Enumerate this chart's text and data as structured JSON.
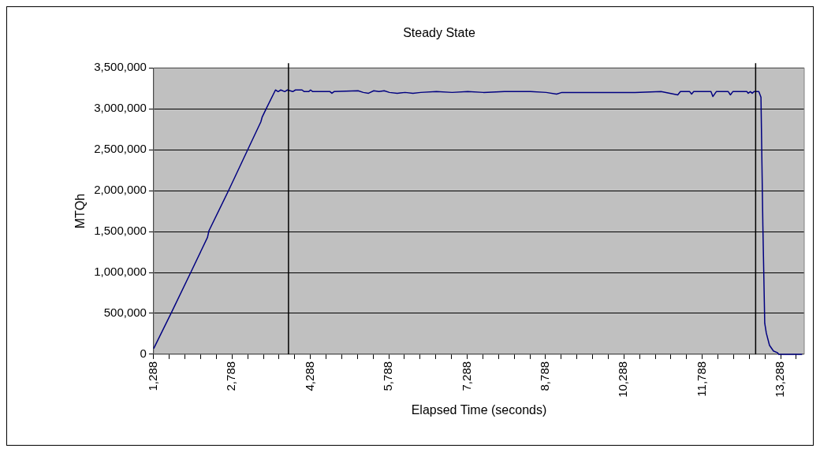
{
  "chart_data": {
    "type": "line",
    "title": "Steady State",
    "xlabel": "Elapsed Time (seconds)",
    "ylabel": "MTQh",
    "xlim": [
      1288,
      13740
    ],
    "xticks": [
      {
        "value": 1288,
        "label": "1,288"
      },
      {
        "value": 1588,
        "label": null
      },
      {
        "value": 1888,
        "label": null
      },
      {
        "value": 2188,
        "label": null
      },
      {
        "value": 2488,
        "label": null
      },
      {
        "value": 2788,
        "label": "2,788"
      },
      {
        "value": 3088,
        "label": null
      },
      {
        "value": 3388,
        "label": null
      },
      {
        "value": 3688,
        "label": null
      },
      {
        "value": 3988,
        "label": null
      },
      {
        "value": 4288,
        "label": "4,288"
      },
      {
        "value": 4588,
        "label": null
      },
      {
        "value": 4888,
        "label": null
      },
      {
        "value": 5188,
        "label": null
      },
      {
        "value": 5488,
        "label": null
      },
      {
        "value": 5788,
        "label": "5,788"
      },
      {
        "value": 6088,
        "label": null
      },
      {
        "value": 6388,
        "label": null
      },
      {
        "value": 6688,
        "label": null
      },
      {
        "value": 6988,
        "label": null
      },
      {
        "value": 7288,
        "label": "7,288"
      },
      {
        "value": 7588,
        "label": null
      },
      {
        "value": 7888,
        "label": null
      },
      {
        "value": 8188,
        "label": null
      },
      {
        "value": 8488,
        "label": null
      },
      {
        "value": 8788,
        "label": "8,788"
      },
      {
        "value": 9088,
        "label": null
      },
      {
        "value": 9388,
        "label": null
      },
      {
        "value": 9688,
        "label": null
      },
      {
        "value": 9988,
        "label": null
      },
      {
        "value": 10288,
        "label": "10,288"
      },
      {
        "value": 10588,
        "label": null
      },
      {
        "value": 10888,
        "label": null
      },
      {
        "value": 11188,
        "label": null
      },
      {
        "value": 11488,
        "label": null
      },
      {
        "value": 11788,
        "label": "11,788"
      },
      {
        "value": 12088,
        "label": null
      },
      {
        "value": 12388,
        "label": null
      },
      {
        "value": 12688,
        "label": null
      },
      {
        "value": 12988,
        "label": null
      },
      {
        "value": 13288,
        "label": "13,288"
      },
      {
        "value": 13588,
        "label": null
      }
    ],
    "ylim": [
      0,
      3500000
    ],
    "yticks": [
      {
        "value": 0,
        "label": "0"
      },
      {
        "value": 500000,
        "label": "500,000"
      },
      {
        "value": 1000000,
        "label": "1,000,000"
      },
      {
        "value": 1500000,
        "label": "1,500,000"
      },
      {
        "value": 2000000,
        "label": "2,000,000"
      },
      {
        "value": 2500000,
        "label": "2,500,000"
      },
      {
        "value": 3000000,
        "label": "3,000,000"
      },
      {
        "value": 3500000,
        "label": "3,500,000"
      }
    ],
    "grid": "y",
    "legend": false,
    "marker": "none",
    "line_style": "solid",
    "ref_lines": [
      {
        "axis": "x",
        "value": 3868,
        "label": null,
        "color": "#000000"
      },
      {
        "axis": "x",
        "value": 12810,
        "label": null,
        "color": "#000000"
      }
    ],
    "series": [
      {
        "color": "#000080",
        "x": [
          1288,
          1635,
          1990,
          2318,
          2346,
          2728,
          3110,
          3339,
          3365,
          3441,
          3619,
          3670,
          3721,
          3797,
          3848,
          3950,
          4001,
          4128,
          4169,
          4255,
          4291,
          4332,
          4663,
          4699,
          4740,
          5200,
          5300,
          5400,
          5500,
          5600,
          5700,
          5800,
          5950,
          6100,
          6250,
          6400,
          6700,
          7000,
          7300,
          7600,
          8000,
          8500,
          8800,
          9000,
          9100,
          9500,
          10000,
          10500,
          11000,
          11319,
          11370,
          11548,
          11584,
          11624,
          11955,
          11991,
          12057,
          12286,
          12327,
          12373,
          12642,
          12668,
          12709,
          12744,
          12779,
          12871,
          12912,
          12948,
          12984,
          13014,
          13075,
          13151,
          13227,
          13253,
          13700
        ],
        "values": [
          70000,
          520000,
          990000,
          1430000,
          1510000,
          2010000,
          2530000,
          2840000,
          2900000,
          3000000,
          3230000,
          3210000,
          3230000,
          3210000,
          3230000,
          3210000,
          3230000,
          3230000,
          3210000,
          3210000,
          3230000,
          3210000,
          3210000,
          3190000,
          3210000,
          3220000,
          3200000,
          3190000,
          3220000,
          3210000,
          3220000,
          3200000,
          3190000,
          3200000,
          3190000,
          3200000,
          3210000,
          3200000,
          3210000,
          3200000,
          3210000,
          3210000,
          3200000,
          3180000,
          3200000,
          3200000,
          3200000,
          3200000,
          3210000,
          3170000,
          3210000,
          3210000,
          3180000,
          3210000,
          3210000,
          3150000,
          3210000,
          3210000,
          3170000,
          3210000,
          3210000,
          3190000,
          3210000,
          3190000,
          3210000,
          3210000,
          3140000,
          1580000,
          380000,
          260000,
          110000,
          40000,
          20000,
          0,
          0
        ]
      }
    ]
  }
}
